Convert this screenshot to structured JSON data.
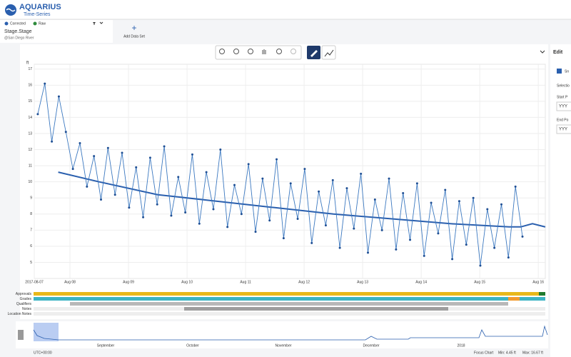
{
  "header": {
    "logo_title": "AQUARIUS",
    "logo_subtitle": "Time-Series"
  },
  "dataset_panel": {
    "name": "Stage.Stage",
    "location": "@San Diego River",
    "add_button": "Add Data Set"
  },
  "edit_panel": {
    "title": "Edit",
    "checkbox_label": "Sn",
    "selection": "Selectio",
    "start_label": "Start P",
    "start_input": "YYY",
    "end_label": "End Po",
    "end_input": "YYY"
  },
  "rows": [
    "Approvals",
    "Grades",
    "Qualifiers",
    "Notes",
    "Location Notes"
  ],
  "focus_chart": {
    "months": [
      "September",
      "October",
      "November",
      "December",
      "2018"
    ],
    "timezone": "UTC+00:00",
    "label": "Focus Chart",
    "min": "Min: 4.45 ft",
    "max": "Max: 16.67 ft"
  },
  "chart_data": {
    "type": "line",
    "ylabel": "ft",
    "grid": true,
    "ylim": [
      4,
      17.3
    ],
    "yticks": [
      5,
      6,
      7,
      8,
      9,
      10,
      11,
      12,
      13,
      14,
      15,
      16,
      17
    ],
    "xlim": [
      0.39,
      9.12
    ],
    "xticks": [
      {
        "value": 0.39,
        "label": "2017-08-07"
      },
      {
        "value": 1,
        "label": "Aug 08"
      },
      {
        "value": 2,
        "label": "Aug 09"
      },
      {
        "value": 3,
        "label": "Aug 10"
      },
      {
        "value": 4,
        "label": "Aug 11"
      },
      {
        "value": 5,
        "label": "Aug 12"
      },
      {
        "value": 6,
        "label": "Aug 13"
      },
      {
        "value": 7,
        "label": "Aug 14"
      },
      {
        "value": 8,
        "label": "Aug 15"
      },
      {
        "value": 9,
        "label": "Aug 16"
      }
    ],
    "series": [
      {
        "name": "Corrected",
        "color": "#2a5fae",
        "x": [
          0.8,
          1.5,
          2.5,
          3.5,
          4.5,
          5.5,
          6.5,
          7.5,
          8.5,
          8.7,
          8.9,
          9.12
        ],
        "values": [
          10.6,
          10.0,
          9.2,
          8.8,
          8.4,
          8.0,
          7.7,
          7.4,
          7.2,
          7.2,
          7.4,
          7.2
        ]
      },
      {
        "name": "Raw",
        "color": "#3b78c0",
        "x": [
          0.45,
          0.57,
          0.69,
          0.81,
          0.93,
          1.05,
          1.17,
          1.29,
          1.41,
          1.53,
          1.65,
          1.77,
          1.89,
          2.01,
          2.13,
          2.25,
          2.37,
          2.49,
          2.61,
          2.73,
          2.85,
          2.97,
          3.09,
          3.21,
          3.33,
          3.45,
          3.57,
          3.69,
          3.81,
          3.93,
          4.05,
          4.17,
          4.29,
          4.41,
          4.53,
          4.65,
          4.77,
          4.89,
          5.01,
          5.13,
          5.25,
          5.37,
          5.49,
          5.61,
          5.73,
          5.85,
          5.97,
          6.09,
          6.21,
          6.33,
          6.45,
          6.57,
          6.69,
          6.81,
          6.93,
          7.05,
          7.17,
          7.29,
          7.41,
          7.53,
          7.65,
          7.77,
          7.89,
          8.01,
          8.13,
          8.25,
          8.37,
          8.49,
          8.61,
          8.73
        ],
        "values": [
          14.2,
          16.1,
          12.5,
          15.3,
          13.1,
          10.8,
          12.4,
          9.7,
          11.6,
          8.9,
          12.1,
          9.2,
          11.8,
          8.4,
          10.9,
          7.8,
          11.5,
          8.6,
          12.2,
          7.9,
          10.3,
          8.1,
          11.7,
          7.4,
          10.6,
          8.3,
          12.0,
          7.2,
          9.8,
          8.0,
          11.1,
          6.9,
          10.2,
          7.6,
          11.4,
          6.5,
          9.9,
          7.7,
          10.8,
          6.2,
          9.4,
          7.3,
          10.1,
          5.9,
          9.6,
          7.1,
          10.5,
          5.6,
          8.9,
          7.0,
          10.2,
          5.8,
          9.3,
          6.4,
          9.9,
          5.4,
          8.7,
          6.8,
          9.5,
          5.2,
          8.8,
          6.1,
          9.0,
          4.8,
          8.3,
          5.9,
          8.6,
          5.3,
          9.7,
          6.6
        ]
      }
    ]
  }
}
